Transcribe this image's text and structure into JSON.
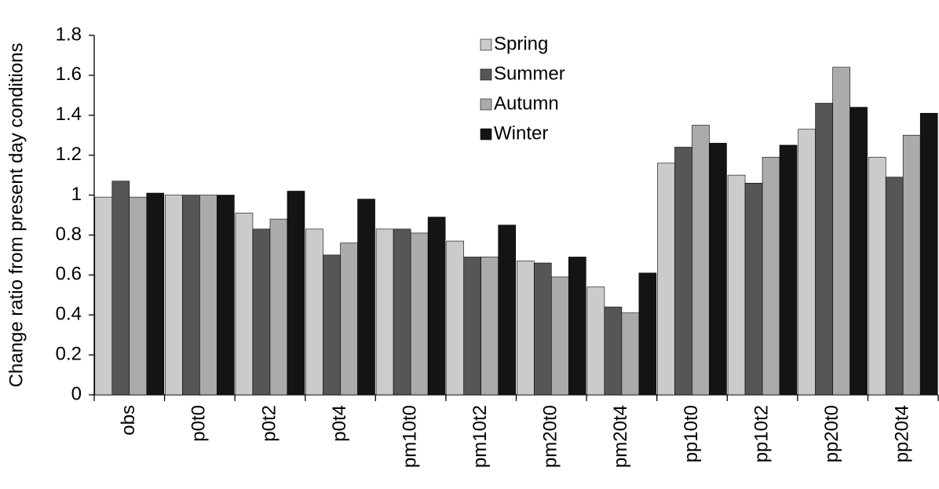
{
  "chart_data": {
    "type": "bar",
    "ylabel": "Change ratio from present day conditions",
    "categories": [
      "obs",
      "p0t0",
      "p0t2",
      "p0t4",
      "pm10t0",
      "pm10t2",
      "pm20t0",
      "pm20t4",
      "pp10t0",
      "pp10t2",
      "pp20t0",
      "pp20t4"
    ],
    "series": [
      {
        "name": "Spring",
        "color": "#cbcbcb",
        "values": [
          0.99,
          1.0,
          0.91,
          0.83,
          0.83,
          0.77,
          0.67,
          0.54,
          1.16,
          1.1,
          1.33,
          1.19
        ]
      },
      {
        "name": "Summer",
        "color": "#565656",
        "values": [
          1.07,
          1.0,
          0.83,
          0.7,
          0.83,
          0.69,
          0.66,
          0.44,
          1.24,
          1.06,
          1.46,
          1.09
        ]
      },
      {
        "name": "Autumn",
        "color": "#ababab",
        "values": [
          0.99,
          1.0,
          0.88,
          0.76,
          0.81,
          0.69,
          0.59,
          0.41,
          1.35,
          1.19,
          1.64,
          1.3
        ]
      },
      {
        "name": "Winter",
        "color": "#141414",
        "values": [
          1.01,
          1.0,
          1.02,
          0.98,
          0.89,
          0.85,
          0.69,
          0.61,
          1.26,
          1.25,
          1.44,
          1.41
        ]
      }
    ],
    "ylim": [
      0,
      1.8
    ],
    "yticks": [
      0,
      0.2,
      0.4,
      0.6,
      0.8,
      1,
      1.2,
      1.4,
      1.6,
      1.8
    ],
    "legend": "top-center",
    "grid": false
  }
}
